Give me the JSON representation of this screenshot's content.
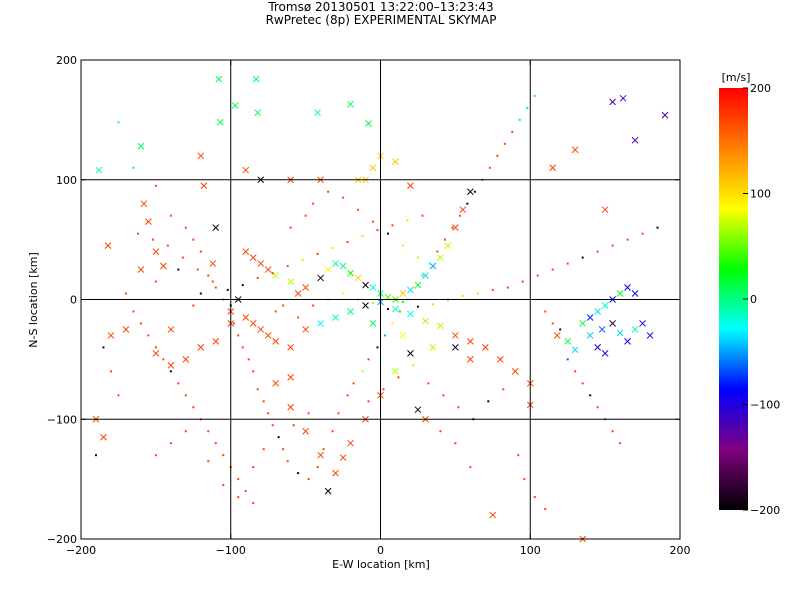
{
  "chart_data": {
    "type": "scatter",
    "title": "Tromsø 20130501 13:22:00–13:23:43",
    "subtitle": "RwPretec (8p) EXPERIMENTAL SKYMAP",
    "xlabel": "E-W location [km]",
    "ylabel": "N-S location [km]",
    "xlim": [
      -200,
      200
    ],
    "ylim": [
      -200,
      200
    ],
    "xticks": [
      "−200",
      "−100",
      "0",
      "100",
      "200"
    ],
    "yticks": [
      "−200",
      "−100",
      "0",
      "100",
      "200"
    ],
    "xtick_values": [
      -200,
      -100,
      0,
      100,
      200
    ],
    "ytick_values": [
      -200,
      -100,
      0,
      100,
      200
    ],
    "grid_lines": [
      -100,
      0,
      100
    ],
    "colorbar": {
      "label": "[m/s]",
      "range": [
        -200,
        200
      ],
      "tick_values": [
        200,
        100,
        0,
        -100,
        -200
      ],
      "ticks": [
        "200",
        "100",
        "0",
        "−100",
        "−200"
      ],
      "colors": [
        "#000000",
        "#800080",
        "#0000ff",
        "#00ffff",
        "#00ff00",
        "#ffff00",
        "#ff8000",
        "#ff0000"
      ]
    },
    "series": [
      {
        "marker": "x",
        "points": [
          [
            -160,
            128
          ],
          [
            -188,
            108
          ],
          [
            -182,
            45
          ],
          [
            -158,
            80
          ],
          [
            -155,
            65
          ],
          [
            -150,
            40
          ],
          [
            -145,
            28
          ],
          [
            -160,
            25
          ],
          [
            -120,
            120
          ],
          [
            -107,
            148
          ],
          [
            -108,
            184
          ],
          [
            -97,
            162
          ],
          [
            -82,
            156
          ],
          [
            -83,
            184
          ],
          [
            -42,
            156
          ],
          [
            -20,
            163
          ],
          [
            -8,
            147
          ],
          [
            -10,
            100
          ],
          [
            -40,
            100
          ],
          [
            -60,
            100
          ],
          [
            -80,
            100
          ],
          [
            -90,
            108
          ],
          [
            -118,
            95
          ],
          [
            -110,
            60
          ],
          [
            -112,
            30
          ],
          [
            -90,
            40
          ],
          [
            -85,
            35
          ],
          [
            -80,
            30
          ],
          [
            -75,
            25
          ],
          [
            -70,
            20
          ],
          [
            -60,
            15
          ],
          [
            -55,
            5
          ],
          [
            -50,
            10
          ],
          [
            -40,
            18
          ],
          [
            -35,
            25
          ],
          [
            -30,
            30
          ],
          [
            -25,
            28
          ],
          [
            -20,
            22
          ],
          [
            -15,
            18
          ],
          [
            -10,
            12
          ],
          [
            -5,
            10
          ],
          [
            0,
            5
          ],
          [
            5,
            2
          ],
          [
            10,
            0
          ],
          [
            15,
            5
          ],
          [
            20,
            8
          ],
          [
            25,
            12
          ],
          [
            30,
            20
          ],
          [
            35,
            28
          ],
          [
            40,
            35
          ],
          [
            45,
            45
          ],
          [
            50,
            60
          ],
          [
            55,
            75
          ],
          [
            60,
            90
          ],
          [
            20,
            95
          ],
          [
            10,
            115
          ],
          [
            0,
            120
          ],
          [
            -5,
            110
          ],
          [
            -15,
            100
          ],
          [
            -95,
            0
          ],
          [
            -100,
            -10
          ],
          [
            -90,
            -15
          ],
          [
            -85,
            -20
          ],
          [
            -80,
            -25
          ],
          [
            -75,
            -30
          ],
          [
            -70,
            -35
          ],
          [
            -60,
            -40
          ],
          [
            -50,
            -25
          ],
          [
            -40,
            -20
          ],
          [
            -30,
            -15
          ],
          [
            -20,
            -10
          ],
          [
            -10,
            -5
          ],
          [
            0,
            -2
          ],
          [
            10,
            -8
          ],
          [
            20,
            -12
          ],
          [
            30,
            -18
          ],
          [
            40,
            -22
          ],
          [
            50,
            -30
          ],
          [
            60,
            -35
          ],
          [
            70,
            -40
          ],
          [
            80,
            -50
          ],
          [
            90,
            -60
          ],
          [
            100,
            -70
          ],
          [
            -70,
            -70
          ],
          [
            -60,
            -90
          ],
          [
            -50,
            -110
          ],
          [
            -40,
            -130
          ],
          [
            -30,
            -145
          ],
          [
            -20,
            -120
          ],
          [
            -10,
            -100
          ],
          [
            0,
            -80
          ],
          [
            10,
            -60
          ],
          [
            20,
            -45
          ],
          [
            30,
            -100
          ],
          [
            25,
            -92
          ],
          [
            -25,
            -132
          ],
          [
            -35,
            -160
          ],
          [
            -60,
            -65
          ],
          [
            -140,
            -25
          ],
          [
            -170,
            -25
          ],
          [
            -185,
            -115
          ],
          [
            -190,
            -100
          ],
          [
            115,
            110
          ],
          [
            130,
            125
          ],
          [
            155,
            165
          ],
          [
            162,
            168
          ],
          [
            170,
            133
          ],
          [
            190,
            154
          ],
          [
            100,
            -88
          ],
          [
            75,
            -180
          ],
          [
            118,
            -30
          ],
          [
            125,
            -35
          ],
          [
            130,
            -42
          ],
          [
            140,
            -30
          ],
          [
            148,
            -25
          ],
          [
            155,
            -20
          ],
          [
            160,
            -28
          ],
          [
            165,
            -35
          ],
          [
            170,
            -25
          ],
          [
            175,
            -20
          ],
          [
            180,
            -30
          ],
          [
            150,
            -45
          ],
          [
            145,
            -40
          ],
          [
            135,
            -20
          ],
          [
            140,
            -15
          ],
          [
            145,
            -10
          ],
          [
            150,
            -5
          ],
          [
            155,
            0
          ],
          [
            160,
            5
          ],
          [
            165,
            10
          ],
          [
            170,
            5
          ],
          [
            150,
            75
          ],
          [
            135,
            -200
          ],
          [
            -130,
            -50
          ],
          [
            -120,
            -40
          ],
          [
            -110,
            -35
          ],
          [
            -100,
            -20
          ],
          [
            -150,
            -45
          ],
          [
            -140,
            -55
          ],
          [
            50,
            -40
          ],
          [
            60,
            -50
          ],
          [
            -5,
            -20
          ],
          [
            15,
            -30
          ],
          [
            35,
            -40
          ],
          [
            -180,
            -30
          ]
        ]
      },
      {
        "marker": "dot",
        "points": [
          [
            -175,
            148
          ],
          [
            -165,
            110
          ],
          [
            -150,
            95
          ],
          [
            -140,
            70
          ],
          [
            -130,
            60
          ],
          [
            -125,
            50
          ],
          [
            -120,
            40
          ],
          [
            -115,
            20
          ],
          [
            -110,
            10
          ],
          [
            -105,
            0
          ],
          [
            -100,
            -5
          ],
          [
            -98,
            -20
          ],
          [
            -95,
            -30
          ],
          [
            -92,
            -40
          ],
          [
            -88,
            -50
          ],
          [
            -85,
            -60
          ],
          [
            -82,
            -75
          ],
          [
            -78,
            -85
          ],
          [
            -75,
            -95
          ],
          [
            -72,
            -105
          ],
          [
            -68,
            -115
          ],
          [
            -65,
            -125
          ],
          [
            -62,
            -135
          ],
          [
            -55,
            -145
          ],
          [
            -48,
            -150
          ],
          [
            -42,
            -140
          ],
          [
            -38,
            -125
          ],
          [
            -32,
            -110
          ],
          [
            -28,
            -95
          ],
          [
            -22,
            -80
          ],
          [
            -18,
            -70
          ],
          [
            -12,
            -60
          ],
          [
            -8,
            -50
          ],
          [
            -2,
            -40
          ],
          [
            3,
            -30
          ],
          [
            8,
            -20
          ],
          [
            13,
            -10
          ],
          [
            18,
            0
          ],
          [
            23,
            10
          ],
          [
            28,
            20
          ],
          [
            33,
            30
          ],
          [
            38,
            40
          ],
          [
            43,
            50
          ],
          [
            48,
            60
          ],
          [
            53,
            70
          ],
          [
            58,
            80
          ],
          [
            63,
            90
          ],
          [
            68,
            100
          ],
          [
            73,
            110
          ],
          [
            78,
            120
          ],
          [
            83,
            130
          ],
          [
            88,
            140
          ],
          [
            93,
            150
          ],
          [
            98,
            160
          ],
          [
            103,
            170
          ],
          [
            -170,
            5
          ],
          [
            -165,
            -10
          ],
          [
            -160,
            -20
          ],
          [
            -155,
            -30
          ],
          [
            -150,
            -40
          ],
          [
            -145,
            -50
          ],
          [
            -140,
            -60
          ],
          [
            -135,
            -70
          ],
          [
            -130,
            -80
          ],
          [
            -125,
            -90
          ],
          [
            -120,
            -100
          ],
          [
            -115,
            -110
          ],
          [
            -110,
            -120
          ],
          [
            -105,
            -130
          ],
          [
            -100,
            -140
          ],
          [
            -95,
            -150
          ],
          [
            -90,
            -160
          ],
          [
            -85,
            -170
          ],
          [
            110,
            -10
          ],
          [
            115,
            -20
          ],
          [
            120,
            -25
          ],
          [
            125,
            -50
          ],
          [
            130,
            -60
          ],
          [
            135,
            -70
          ],
          [
            140,
            -80
          ],
          [
            145,
            -90
          ],
          [
            150,
            -100
          ],
          [
            155,
            -110
          ],
          [
            160,
            -120
          ],
          [
            -60,
            60
          ],
          [
            -50,
            70
          ],
          [
            -45,
            80
          ],
          [
            -35,
            90
          ],
          [
            -25,
            85
          ],
          [
            -15,
            75
          ],
          [
            -5,
            65
          ],
          [
            5,
            55
          ],
          [
            15,
            45
          ],
          [
            25,
            35
          ],
          [
            -150,
            15
          ],
          [
            -135,
            25
          ],
          [
            -120,
            5
          ],
          [
            -125,
            -5
          ],
          [
            -70,
            -10
          ],
          [
            -65,
            -5
          ],
          [
            -55,
            -15
          ],
          [
            -45,
            -5
          ],
          [
            -35,
            0
          ],
          [
            -25,
            5
          ],
          [
            -15,
            0
          ],
          [
            -5,
            -3
          ],
          [
            5,
            -8
          ],
          [
            15,
            -2
          ],
          [
            25,
            -6
          ],
          [
            35,
            -4
          ],
          [
            45,
            0
          ],
          [
            55,
            3
          ],
          [
            65,
            5
          ],
          [
            75,
            8
          ],
          [
            85,
            10
          ],
          [
            95,
            15
          ],
          [
            105,
            20
          ],
          [
            115,
            25
          ],
          [
            125,
            30
          ],
          [
            135,
            35
          ],
          [
            145,
            40
          ],
          [
            155,
            45
          ],
          [
            165,
            50
          ],
          [
            175,
            55
          ],
          [
            185,
            60
          ],
          [
            -180,
            -60
          ],
          [
            -185,
            -40
          ],
          [
            -175,
            -80
          ],
          [
            -190,
            -130
          ],
          [
            92,
            -130
          ],
          [
            96,
            -150
          ],
          [
            103,
            -165
          ],
          [
            110,
            -175
          ],
          [
            60,
            -140
          ],
          [
            50,
            -120
          ],
          [
            40,
            -110
          ],
          [
            -150,
            -130
          ],
          [
            -140,
            -120
          ],
          [
            -130,
            -110
          ],
          [
            -115,
            -135
          ],
          [
            -105,
            -155
          ],
          [
            -95,
            -165
          ],
          [
            -85,
            -140
          ],
          [
            -78,
            -125
          ],
          [
            -58,
            -105
          ],
          [
            -48,
            -95
          ],
          [
            -8,
            -85
          ],
          [
            2,
            -75
          ],
          [
            12,
            -65
          ],
          [
            22,
            -55
          ],
          [
            32,
            -70
          ],
          [
            42,
            -80
          ],
          [
            52,
            -90
          ],
          [
            62,
            -100
          ],
          [
            72,
            -85
          ],
          [
            82,
            -75
          ],
          [
            -162,
            55
          ],
          [
            -152,
            50
          ],
          [
            -142,
            45
          ],
          [
            -132,
            35
          ],
          [
            -122,
            25
          ],
          [
            -112,
            15
          ],
          [
            -102,
            8
          ],
          [
            -92,
            12
          ],
          [
            -82,
            18
          ],
          [
            -72,
            22
          ],
          [
            -62,
            28
          ],
          [
            -52,
            33
          ],
          [
            -42,
            38
          ],
          [
            -32,
            43
          ],
          [
            -22,
            48
          ],
          [
            -12,
            53
          ],
          [
            -2,
            58
          ],
          [
            8,
            62
          ],
          [
            18,
            66
          ],
          [
            28,
            70
          ]
        ]
      }
    ]
  }
}
